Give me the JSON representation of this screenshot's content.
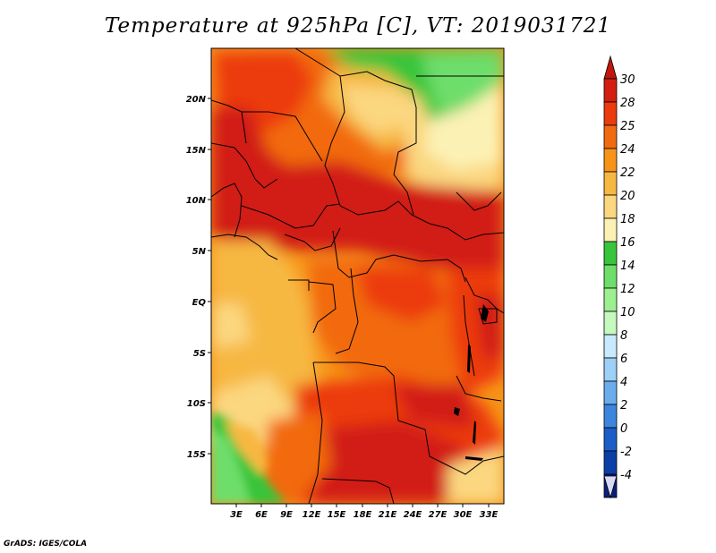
{
  "title": "Temperature at 925hPa [C], VT: 2019031721",
  "credit": "GrADS: IGES/COLA",
  "map": {
    "region": "Central Africa",
    "lat_labels": [
      "20N",
      "15N",
      "10N",
      "5N",
      "EQ",
      "5S",
      "10S",
      "15S"
    ],
    "lon_labels": [
      "3E",
      "6E",
      "9E",
      "12E",
      "15E",
      "18E",
      "21E",
      "24E",
      "27E",
      "30E",
      "33E"
    ]
  },
  "colorbar": {
    "labels": [
      "30",
      "28",
      "25",
      "24",
      "22",
      "20",
      "18",
      "16",
      "14",
      "12",
      "10",
      "8",
      "6",
      "4",
      "2",
      "0",
      "-2",
      "-4"
    ],
    "colors": [
      "#d21f12",
      "#ec3b0c",
      "#f26a10",
      "#f79418",
      "#f7b842",
      "#fbd780",
      "#fcf1b4",
      "#39c53b",
      "#6ede6b",
      "#9cf090",
      "#c5f9bd",
      "#c8eafc",
      "#9cd0f6",
      "#6aacec",
      "#3d86de",
      "#1c5ec8",
      "#0c3ea8",
      "#0a1f7a"
    ],
    "top_arrow_color": "#c1160d",
    "bottom_arrow_color": "#d8d8f8"
  }
}
